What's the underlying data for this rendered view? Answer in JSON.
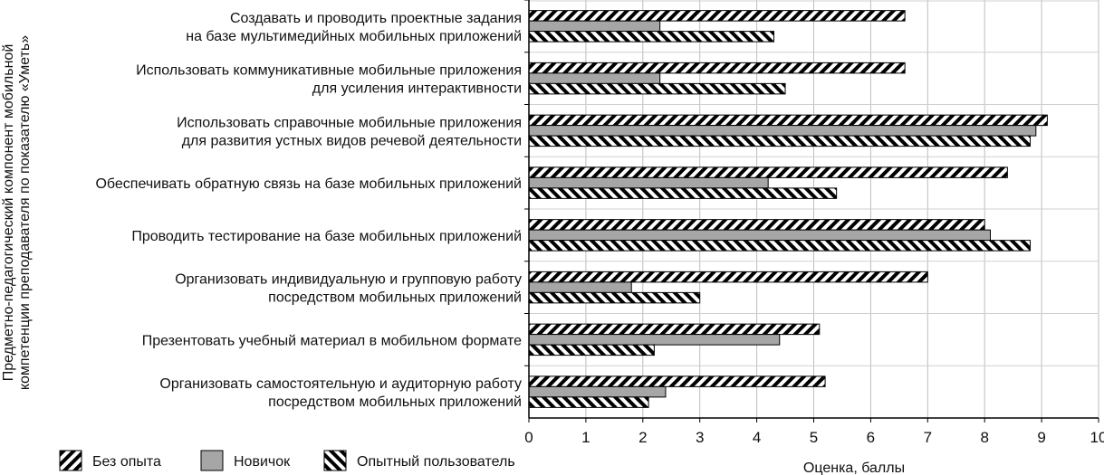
{
  "chart_data": {
    "type": "bar",
    "orientation": "horizontal",
    "title": "",
    "xlabel": "Оценка, баллы",
    "ylabel": "Предметно-педагогический компонент мобильной компетенции преподавателя по показателю «Уметь»",
    "xlim": [
      0,
      10
    ],
    "xticks": [
      0,
      1,
      2,
      3,
      4,
      5,
      6,
      7,
      8,
      9,
      10
    ],
    "grid": true,
    "legend_position": "bottom-left",
    "categories": [
      [
        "Создавать и проводить проектные задания",
        "на базе мультимедийных мобильных приложений"
      ],
      [
        "Использовать коммуникативные мобильные приложения",
        "для усиления интерактивности"
      ],
      [
        "Использовать справочные мобильные приложения",
        "для развития устных видов речевой деятельности"
      ],
      [
        "Обеспечивать обратную связь на базе мобильных приложений"
      ],
      [
        "Проводить тестирование на базе мобильных приложений"
      ],
      [
        "Организовать индивидуальную и групповую работу",
        "посредством мобильных приложений"
      ],
      [
        "Презентовать учебный материал в мобильном формате"
      ],
      [
        "Организовать самостоятельную и аудиторную работу",
        "посредством мобильных приложений"
      ]
    ],
    "series": [
      {
        "name": "Без опыта",
        "pattern": "hatch-forward",
        "values": [
          6.6,
          6.6,
          9.1,
          8.4,
          8.0,
          7.0,
          5.1,
          5.2
        ]
      },
      {
        "name": "Новичок",
        "pattern": "solid",
        "color": "#a6a6a6",
        "values": [
          2.3,
          2.3,
          8.9,
          4.2,
          8.1,
          1.8,
          4.4,
          2.4
        ]
      },
      {
        "name": "Опытный пользователь",
        "pattern": "hatch-back",
        "values": [
          4.3,
          4.5,
          8.8,
          5.4,
          8.8,
          3.0,
          2.2,
          2.1
        ]
      }
    ]
  }
}
